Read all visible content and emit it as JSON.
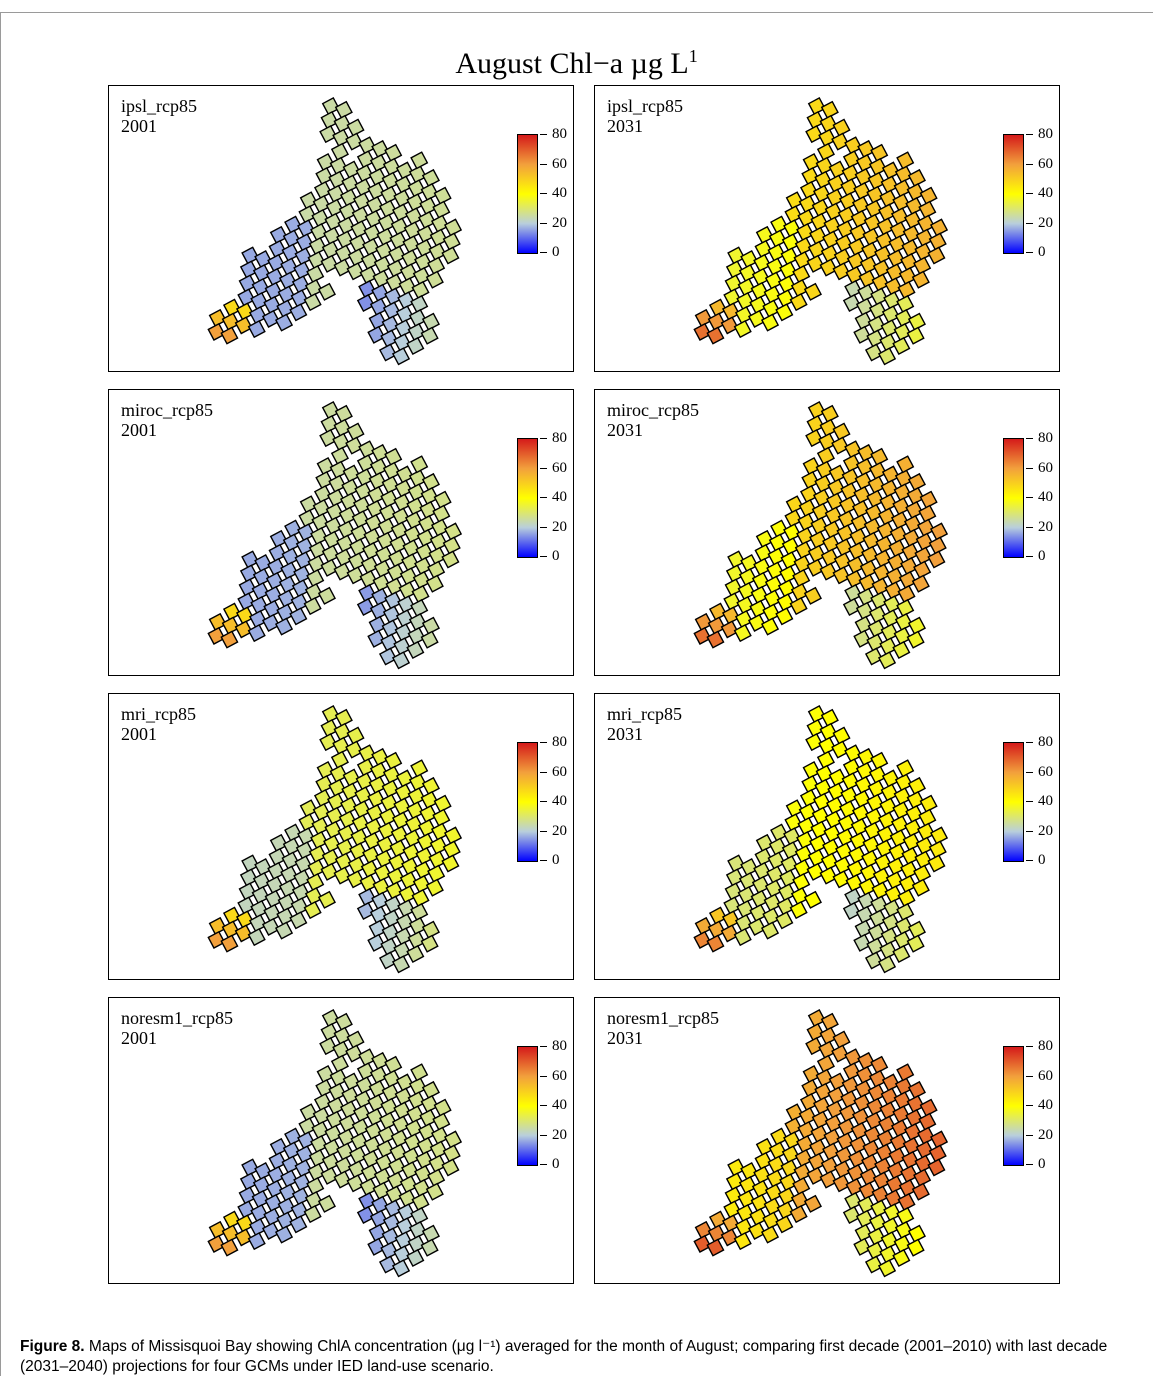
{
  "figure": {
    "title_main": "August Chl−a µg L",
    "title_sup": "1",
    "caption_label": "Figure 8.",
    "caption_text": " Maps of Missisquoi Bay showing ChlA concentration (μg l⁻¹) averaged for the month of August; comparing first decade (2001–2010) with last decade (2031–2040) projections for four GCMs under IED land-use scenario."
  },
  "colorbar": {
    "ticks": [
      "80",
      "60",
      "40",
      "20",
      "0"
    ],
    "colors": [
      "#0000ff",
      "#b9cfdc",
      "#ffff00",
      "#f2a03c",
      "#d41a1a"
    ]
  },
  "panels": [
    {
      "model": "ipsl_rcp85",
      "year": "2001",
      "north": 24,
      "east": 20,
      "south": 14,
      "sw": 48,
      "hot": []
    },
    {
      "model": "ipsl_rcp85",
      "year": "2031",
      "north": 42,
      "east": 52,
      "south": 24,
      "sw": 55,
      "hot": []
    },
    {
      "model": "miroc_rcp85",
      "year": "2001",
      "north": 24,
      "east": 22,
      "south": 15,
      "sw": 48,
      "hot": []
    },
    {
      "model": "miroc_rcp85",
      "year": "2031",
      "north": 42,
      "east": 58,
      "south": 26,
      "sw": 55,
      "hot": [
        [
          3,
          9
        ],
        [
          4,
          9
        ],
        [
          5,
          9
        ],
        [
          12,
          9
        ]
      ]
    },
    {
      "model": "mri_rcp85",
      "year": "2001",
      "north": 30,
      "east": 30,
      "south": 18,
      "sw": 48,
      "hot": []
    },
    {
      "model": "mri_rcp85",
      "year": "2031",
      "north": 36,
      "east": 38,
      "south": 22,
      "sw": 52,
      "hot": []
    },
    {
      "model": "noresm1_rcp85",
      "year": "2001",
      "north": 24,
      "east": 22,
      "south": 14,
      "sw": 48,
      "hot": []
    },
    {
      "model": "noresm1_rcp85",
      "year": "2031",
      "north": 50,
      "east": 65,
      "south": 30,
      "sw": 58,
      "hot": [
        [
          2,
          9
        ],
        [
          3,
          9
        ],
        [
          4,
          9
        ],
        [
          12,
          9
        ]
      ]
    }
  ]
}
